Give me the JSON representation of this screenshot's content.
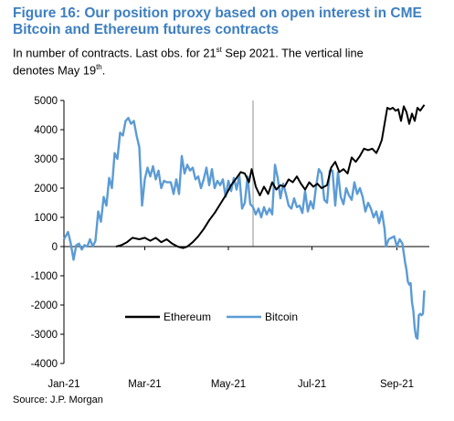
{
  "title_line1": "Figure 16: Our position proxy based on open interest in CME",
  "title_line2": "Bitcoin and Ethereum futures contracts",
  "subtitle_a": "In number of contracts. Last obs. for 21",
  "subtitle_sup1": "st",
  "subtitle_b": " Sep 2021. The vertical line",
  "subtitle_c": "denotes May 19",
  "subtitle_sup2": "th",
  "subtitle_d": ".",
  "source": "Source: J.P. Morgan",
  "colors": {
    "title": "#3d7fc1",
    "ethereum": "#000000",
    "bitcoin": "#5b9bd5",
    "vline": "#c8c8c8"
  },
  "chart_data": {
    "type": "line",
    "x_unit": "date",
    "x_range": [
      "2021-01-01",
      "2021-09-21"
    ],
    "ylim": [
      -4000,
      5000
    ],
    "yticks": [
      -4000,
      -3000,
      -2000,
      -1000,
      0,
      1000,
      2000,
      3000,
      4000,
      5000
    ],
    "xticks": [
      {
        "label": "Jan-21",
        "date": "2021-01-01"
      },
      {
        "label": "Mar-21",
        "date": "2021-03-01"
      },
      {
        "label": "May-21",
        "date": "2021-05-01"
      },
      {
        "label": "Jul-21",
        "date": "2021-07-01"
      },
      {
        "label": "Sep-21",
        "date": "2021-09-01"
      }
    ],
    "vertical_line": "2021-05-19",
    "legend_position": "bottom-center",
    "series": [
      {
        "name": "Ethereum",
        "color": "#000000",
        "points": [
          [
            "2021-02-08",
            0
          ],
          [
            "2021-02-12",
            50
          ],
          [
            "2021-02-16",
            150
          ],
          [
            "2021-02-20",
            300
          ],
          [
            "2021-02-25",
            250
          ],
          [
            "2021-03-01",
            300
          ],
          [
            "2021-03-05",
            200
          ],
          [
            "2021-03-09",
            300
          ],
          [
            "2021-03-13",
            150
          ],
          [
            "2021-03-17",
            250
          ],
          [
            "2021-03-21",
            100
          ],
          [
            "2021-03-25",
            0
          ],
          [
            "2021-03-29",
            -50
          ],
          [
            "2021-04-01",
            0
          ],
          [
            "2021-04-05",
            150
          ],
          [
            "2021-04-09",
            350
          ],
          [
            "2021-04-13",
            600
          ],
          [
            "2021-04-17",
            900
          ],
          [
            "2021-04-21",
            1150
          ],
          [
            "2021-04-25",
            1450
          ],
          [
            "2021-04-29",
            1750
          ],
          [
            "2021-05-03",
            2100
          ],
          [
            "2021-05-07",
            2350
          ],
          [
            "2021-05-10",
            2550
          ],
          [
            "2021-05-13",
            2500
          ],
          [
            "2021-05-16",
            2200
          ],
          [
            "2021-05-18",
            2650
          ],
          [
            "2021-05-21",
            2050
          ],
          [
            "2021-05-24",
            1750
          ],
          [
            "2021-05-27",
            2050
          ],
          [
            "2021-05-30",
            1800
          ],
          [
            "2021-06-02",
            2200
          ],
          [
            "2021-06-05",
            1950
          ],
          [
            "2021-06-08",
            2100
          ],
          [
            "2021-06-11",
            2050
          ],
          [
            "2021-06-14",
            2300
          ],
          [
            "2021-06-17",
            2200
          ],
          [
            "2021-06-20",
            2400
          ],
          [
            "2021-06-23",
            2150
          ],
          [
            "2021-06-26",
            1950
          ],
          [
            "2021-06-29",
            2200
          ],
          [
            "2021-07-02",
            2050
          ],
          [
            "2021-07-05",
            2150
          ],
          [
            "2021-07-08",
            2000
          ],
          [
            "2021-07-12",
            2100
          ],
          [
            "2021-07-15",
            2700
          ],
          [
            "2021-07-18",
            2900
          ],
          [
            "2021-07-21",
            2550
          ],
          [
            "2021-07-24",
            2650
          ],
          [
            "2021-07-27",
            2500
          ],
          [
            "2021-07-30",
            3050
          ],
          [
            "2021-08-02",
            2900
          ],
          [
            "2021-08-05",
            3100
          ],
          [
            "2021-08-08",
            3350
          ],
          [
            "2021-08-11",
            3300
          ],
          [
            "2021-08-14",
            3350
          ],
          [
            "2021-08-17",
            3200
          ],
          [
            "2021-08-19",
            3400
          ],
          [
            "2021-08-21",
            3650
          ],
          [
            "2021-08-23",
            4200
          ],
          [
            "2021-08-25",
            4750
          ],
          [
            "2021-08-27",
            4700
          ],
          [
            "2021-08-29",
            4750
          ],
          [
            "2021-08-31",
            4650
          ],
          [
            "2021-09-02",
            4700
          ],
          [
            "2021-09-04",
            4300
          ],
          [
            "2021-09-06",
            4800
          ],
          [
            "2021-09-08",
            4600
          ],
          [
            "2021-09-10",
            4200
          ],
          [
            "2021-09-12",
            4550
          ],
          [
            "2021-09-14",
            4300
          ],
          [
            "2021-09-16",
            4750
          ],
          [
            "2021-09-18",
            4650
          ],
          [
            "2021-09-21",
            4850
          ]
        ]
      },
      {
        "name": "Bitcoin",
        "color": "#5b9bd5",
        "points": [
          [
            "2021-01-01",
            250
          ],
          [
            "2021-01-04",
            500
          ],
          [
            "2021-01-06",
            100
          ],
          [
            "2021-01-08",
            -450
          ],
          [
            "2021-01-10",
            50
          ],
          [
            "2021-01-12",
            100
          ],
          [
            "2021-01-14",
            -100
          ],
          [
            "2021-01-16",
            50
          ],
          [
            "2021-01-18",
            0
          ],
          [
            "2021-01-20",
            250
          ],
          [
            "2021-01-22",
            0
          ],
          [
            "2021-01-24",
            200
          ],
          [
            "2021-01-26",
            1200
          ],
          [
            "2021-01-28",
            850
          ],
          [
            "2021-01-30",
            1700
          ],
          [
            "2021-02-01",
            1400
          ],
          [
            "2021-02-03",
            2350
          ],
          [
            "2021-02-05",
            2000
          ],
          [
            "2021-02-07",
            3200
          ],
          [
            "2021-02-09",
            3000
          ],
          [
            "2021-02-11",
            3900
          ],
          [
            "2021-02-13",
            3800
          ],
          [
            "2021-02-15",
            4300
          ],
          [
            "2021-02-17",
            4400
          ],
          [
            "2021-02-19",
            4200
          ],
          [
            "2021-02-21",
            4300
          ],
          [
            "2021-02-23",
            3800
          ],
          [
            "2021-02-25",
            3400
          ],
          [
            "2021-02-27",
            1400
          ],
          [
            "2021-03-01",
            2300
          ],
          [
            "2021-03-03",
            2700
          ],
          [
            "2021-03-05",
            2400
          ],
          [
            "2021-03-07",
            2750
          ],
          [
            "2021-03-09",
            2300
          ],
          [
            "2021-03-11",
            2600
          ],
          [
            "2021-03-13",
            2000
          ],
          [
            "2021-03-15",
            2250
          ],
          [
            "2021-03-17",
            2200
          ],
          [
            "2021-03-20",
            2200
          ],
          [
            "2021-03-22",
            1800
          ],
          [
            "2021-03-24",
            2300
          ],
          [
            "2021-03-26",
            1800
          ],
          [
            "2021-03-28",
            3100
          ],
          [
            "2021-03-30",
            2500
          ],
          [
            "2021-04-01",
            2800
          ],
          [
            "2021-04-03",
            2600
          ],
          [
            "2021-04-05",
            2700
          ],
          [
            "2021-04-07",
            2300
          ],
          [
            "2021-04-09",
            2400
          ],
          [
            "2021-04-11",
            2000
          ],
          [
            "2021-04-13",
            2300
          ],
          [
            "2021-04-15",
            2700
          ],
          [
            "2021-04-17",
            2100
          ],
          [
            "2021-04-19",
            2650
          ],
          [
            "2021-04-21",
            2000
          ],
          [
            "2021-04-23",
            2250
          ],
          [
            "2021-04-25",
            2100
          ],
          [
            "2021-04-27",
            2300
          ],
          [
            "2021-04-29",
            1700
          ],
          [
            "2021-05-01",
            2250
          ],
          [
            "2021-05-03",
            1900
          ],
          [
            "2021-05-05",
            2350
          ],
          [
            "2021-05-07",
            1950
          ],
          [
            "2021-05-09",
            2450
          ],
          [
            "2021-05-11",
            1300
          ],
          [
            "2021-05-13",
            1500
          ],
          [
            "2021-05-15",
            2400
          ],
          [
            "2021-05-17",
            1450
          ],
          [
            "2021-05-19",
            1350
          ],
          [
            "2021-05-21",
            1100
          ],
          [
            "2021-05-23",
            1300
          ],
          [
            "2021-05-25",
            1000
          ],
          [
            "2021-05-27",
            1350
          ],
          [
            "2021-05-29",
            1100
          ],
          [
            "2021-05-31",
            1300
          ],
          [
            "2021-06-02",
            1100
          ],
          [
            "2021-06-04",
            2800
          ],
          [
            "2021-06-06",
            2350
          ],
          [
            "2021-06-08",
            1650
          ],
          [
            "2021-06-10",
            2150
          ],
          [
            "2021-06-12",
            1800
          ],
          [
            "2021-06-14",
            1400
          ],
          [
            "2021-06-16",
            1300
          ],
          [
            "2021-06-18",
            1650
          ],
          [
            "2021-06-20",
            1350
          ],
          [
            "2021-06-22",
            1400
          ],
          [
            "2021-06-24",
            1150
          ],
          [
            "2021-06-26",
            1900
          ],
          [
            "2021-06-28",
            1200
          ],
          [
            "2021-06-30",
            1550
          ],
          [
            "2021-07-02",
            1300
          ],
          [
            "2021-07-04",
            2050
          ],
          [
            "2021-07-06",
            2650
          ],
          [
            "2021-07-08",
            2500
          ],
          [
            "2021-07-10",
            1600
          ],
          [
            "2021-07-12",
            1500
          ],
          [
            "2021-07-14",
            2600
          ],
          [
            "2021-07-16",
            2600
          ],
          [
            "2021-07-18",
            1400
          ],
          [
            "2021-07-20",
            2550
          ],
          [
            "2021-07-22",
            1700
          ],
          [
            "2021-07-24",
            1450
          ],
          [
            "2021-07-26",
            2000
          ],
          [
            "2021-07-28",
            1750
          ],
          [
            "2021-07-30",
            1600
          ],
          [
            "2021-08-01",
            2200
          ],
          [
            "2021-08-03",
            1800
          ],
          [
            "2021-08-05",
            2000
          ],
          [
            "2021-08-07",
            1700
          ],
          [
            "2021-08-09",
            1200
          ],
          [
            "2021-08-11",
            1500
          ],
          [
            "2021-08-13",
            1300
          ],
          [
            "2021-08-15",
            1000
          ],
          [
            "2021-08-17",
            1200
          ],
          [
            "2021-08-19",
            800
          ],
          [
            "2021-08-21",
            1200
          ],
          [
            "2021-08-23",
            600
          ],
          [
            "2021-08-24",
            0
          ],
          [
            "2021-08-26",
            250
          ],
          [
            "2021-08-28",
            300
          ],
          [
            "2021-08-30",
            350
          ],
          [
            "2021-09-01",
            0
          ],
          [
            "2021-09-03",
            250
          ],
          [
            "2021-09-05",
            100
          ],
          [
            "2021-09-07",
            -550
          ],
          [
            "2021-09-08",
            -800
          ],
          [
            "2021-09-09",
            -1200
          ],
          [
            "2021-09-10",
            -1300
          ],
          [
            "2021-09-11",
            -1250
          ],
          [
            "2021-09-12",
            -1900
          ],
          [
            "2021-09-13",
            -2200
          ],
          [
            "2021-09-14",
            -2800
          ],
          [
            "2021-09-15",
            -3100
          ],
          [
            "2021-09-16",
            -3150
          ],
          [
            "2021-09-17",
            -2350
          ],
          [
            "2021-09-18",
            -2300
          ],
          [
            "2021-09-19",
            -2350
          ],
          [
            "2021-09-20",
            -2300
          ],
          [
            "2021-09-21",
            -1500
          ]
        ]
      }
    ]
  }
}
